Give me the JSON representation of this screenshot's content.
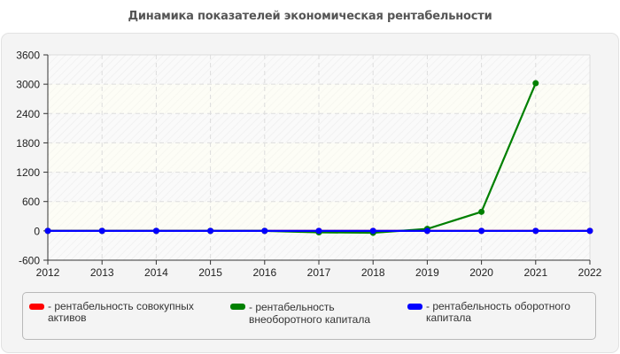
{
  "title": "Динамика показателей экономическая рентабельности",
  "chart_data": {
    "type": "line",
    "title": "Динамика показателей экономическая рентабельности",
    "xlabel": "",
    "ylabel": "",
    "x": [
      2012,
      2013,
      2014,
      2015,
      2016,
      2017,
      2018,
      2019,
      2020,
      2021,
      2022
    ],
    "ylim": [
      -600,
      3600
    ],
    "yticks": [
      -600,
      0,
      600,
      1200,
      1800,
      2400,
      3000,
      3600
    ],
    "grid": true,
    "legend_position": "bottom",
    "series": [
      {
        "name": "рентабельность совокупных активов",
        "color": "#ff0000",
        "values": [
          0,
          0,
          0,
          0,
          0,
          0,
          0,
          0,
          0,
          0,
          0
        ]
      },
      {
        "name": "рентабельность внеоборотного капитала",
        "color": "#008000",
        "values": [
          0,
          0,
          0,
          0,
          0,
          -30,
          -40,
          40,
          390,
          3020,
          null
        ]
      },
      {
        "name": "рентабельность оборотного капитала",
        "color": "#0000ff",
        "values": [
          0,
          0,
          0,
          0,
          0,
          0,
          0,
          0,
          0,
          0,
          0
        ]
      }
    ]
  },
  "legend": [
    {
      "line1": "- рентабельность совокупных",
      "line2": "активов",
      "color": "#ff0000"
    },
    {
      "line1": "- рентабельность",
      "line2": "внеоборотного капитала",
      "color": "#008000"
    },
    {
      "line1": "- рентабельность оборотного",
      "line2": "капитала",
      "color": "#0000ff"
    }
  ]
}
